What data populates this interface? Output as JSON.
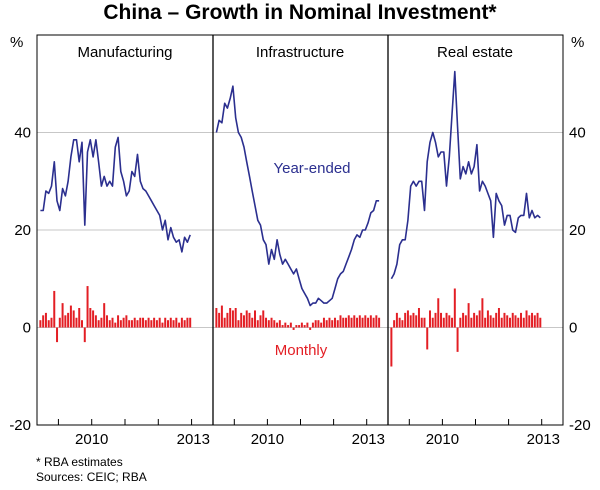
{
  "chart_data": {
    "type": "bar+line",
    "title": "China – Growth in Nominal Investment*",
    "y_unit_left": "%",
    "y_unit_right": "%",
    "ylim": [
      -20,
      60
    ],
    "yticks": [
      -20,
      0,
      20,
      40
    ],
    "yticks_right": [
      -20,
      0,
      20,
      40
    ],
    "grid": true,
    "footnotes": [
      "*    RBA estimates",
      "Sources: CEIC; RBA"
    ],
    "series_labels": {
      "line": "Year-ended",
      "bars": "Monthly"
    },
    "colors": {
      "line": "#2b2f8f",
      "bars": "#e31e24",
      "axes": "#000000",
      "grid": "#b4b4b4"
    },
    "panels": [
      {
        "name": "Manufacturing",
        "x_ticks": [
          "2010",
          "2013"
        ],
        "x_start": "2008-06",
        "year_ended": [
          24,
          24,
          28,
          27.5,
          29,
          34,
          26,
          24,
          28.5,
          27,
          30,
          35,
          38.5,
          38.5,
          34,
          38,
          21,
          36,
          38.5,
          35,
          38.5,
          34,
          29,
          31,
          29,
          30,
          29,
          37,
          39,
          32,
          30,
          27,
          28,
          32,
          31,
          35.5,
          30,
          28.5,
          28,
          27,
          26,
          25,
          24,
          23,
          20,
          22,
          18,
          20.5,
          18.5,
          17.5,
          18,
          15.5,
          18.5,
          17.5,
          19
        ],
        "monthly": [
          1.5,
          2.5,
          3,
          1.5,
          2,
          7.5,
          -3,
          2,
          5,
          2.5,
          3,
          4.5,
          3.5,
          2,
          4,
          1.5,
          -3,
          8.5,
          4,
          3.5,
          2.5,
          1.5,
          2,
          5,
          2.5,
          1.5,
          2,
          1,
          2.5,
          1.5,
          2,
          2.5,
          1.5,
          1.5,
          2,
          1.5,
          2,
          2,
          1.5,
          2,
          1.5,
          2,
          1.5,
          2,
          1,
          2,
          1.5,
          2,
          1.5,
          2,
          1,
          2,
          1.5,
          2,
          2
        ]
      },
      {
        "name": "Infrastructure",
        "x_ticks": [
          "2010",
          "2013"
        ],
        "x_start": "2008-06",
        "year_ended": [
          40,
          42.5,
          42,
          46,
          45,
          47,
          49.5,
          43,
          40,
          39,
          37,
          34,
          31,
          28,
          25,
          22,
          21,
          18,
          17,
          13,
          16,
          14,
          18,
          15,
          13,
          14,
          13,
          12,
          11,
          12,
          10,
          8,
          7,
          6,
          4.5,
          5,
          5,
          6,
          5.5,
          5,
          5,
          5.5,
          6,
          8,
          10,
          11,
          11.5,
          13,
          14.5,
          16,
          18,
          19,
          18.5,
          20,
          20,
          21.5,
          23.5,
          24,
          26,
          26
        ],
        "monthly": [
          4,
          3,
          4.5,
          2,
          3,
          4,
          3.5,
          4,
          1.5,
          3,
          2.5,
          3.5,
          3,
          2,
          3.5,
          1.5,
          2.5,
          3.5,
          2,
          1.5,
          2,
          1.5,
          1,
          1.5,
          0.5,
          1,
          0.5,
          1,
          -0.5,
          0.5,
          0.5,
          1,
          0.5,
          1,
          -0.5,
          1,
          1.5,
          1.5,
          1,
          2,
          1.5,
          2,
          1.5,
          2,
          1.5,
          2.5,
          2,
          2,
          2.5,
          2,
          2.5,
          2,
          2.5,
          2,
          2.5,
          2,
          2.5,
          2,
          2.5,
          2
        ]
      },
      {
        "name": "Real estate",
        "x_ticks": [
          "2010",
          "2013"
        ],
        "x_start": "2008-06",
        "year_ended": [
          10,
          11,
          13,
          17,
          18,
          18,
          22,
          29,
          30,
          29,
          30,
          30,
          24,
          34,
          38,
          40,
          38,
          35,
          36,
          36,
          29,
          35,
          44,
          52.5,
          41,
          30.5,
          33,
          31.5,
          34,
          31.5,
          33,
          37.5,
          28,
          30,
          29,
          27.5,
          26,
          18.5,
          27.5,
          26,
          25,
          21,
          23,
          23,
          20,
          19.5,
          22.5,
          23,
          23,
          27.5,
          22.5,
          24,
          22.5,
          23,
          22.5
        ],
        "monthly": [
          -8,
          1.5,
          3,
          2,
          1.5,
          3,
          3.5,
          2.5,
          3,
          2.5,
          4,
          2,
          2,
          -4.5,
          3.5,
          2,
          3,
          6,
          3,
          2,
          3,
          2.5,
          2,
          8,
          -5,
          2,
          3,
          2.5,
          5,
          2,
          3,
          2.5,
          3.5,
          6,
          2,
          3.5,
          2.5,
          2,
          3,
          4,
          2,
          3,
          2.5,
          2,
          3,
          2.5,
          2,
          3,
          2,
          3.5,
          2.5,
          3,
          2.5,
          3,
          2
        ]
      }
    ]
  }
}
